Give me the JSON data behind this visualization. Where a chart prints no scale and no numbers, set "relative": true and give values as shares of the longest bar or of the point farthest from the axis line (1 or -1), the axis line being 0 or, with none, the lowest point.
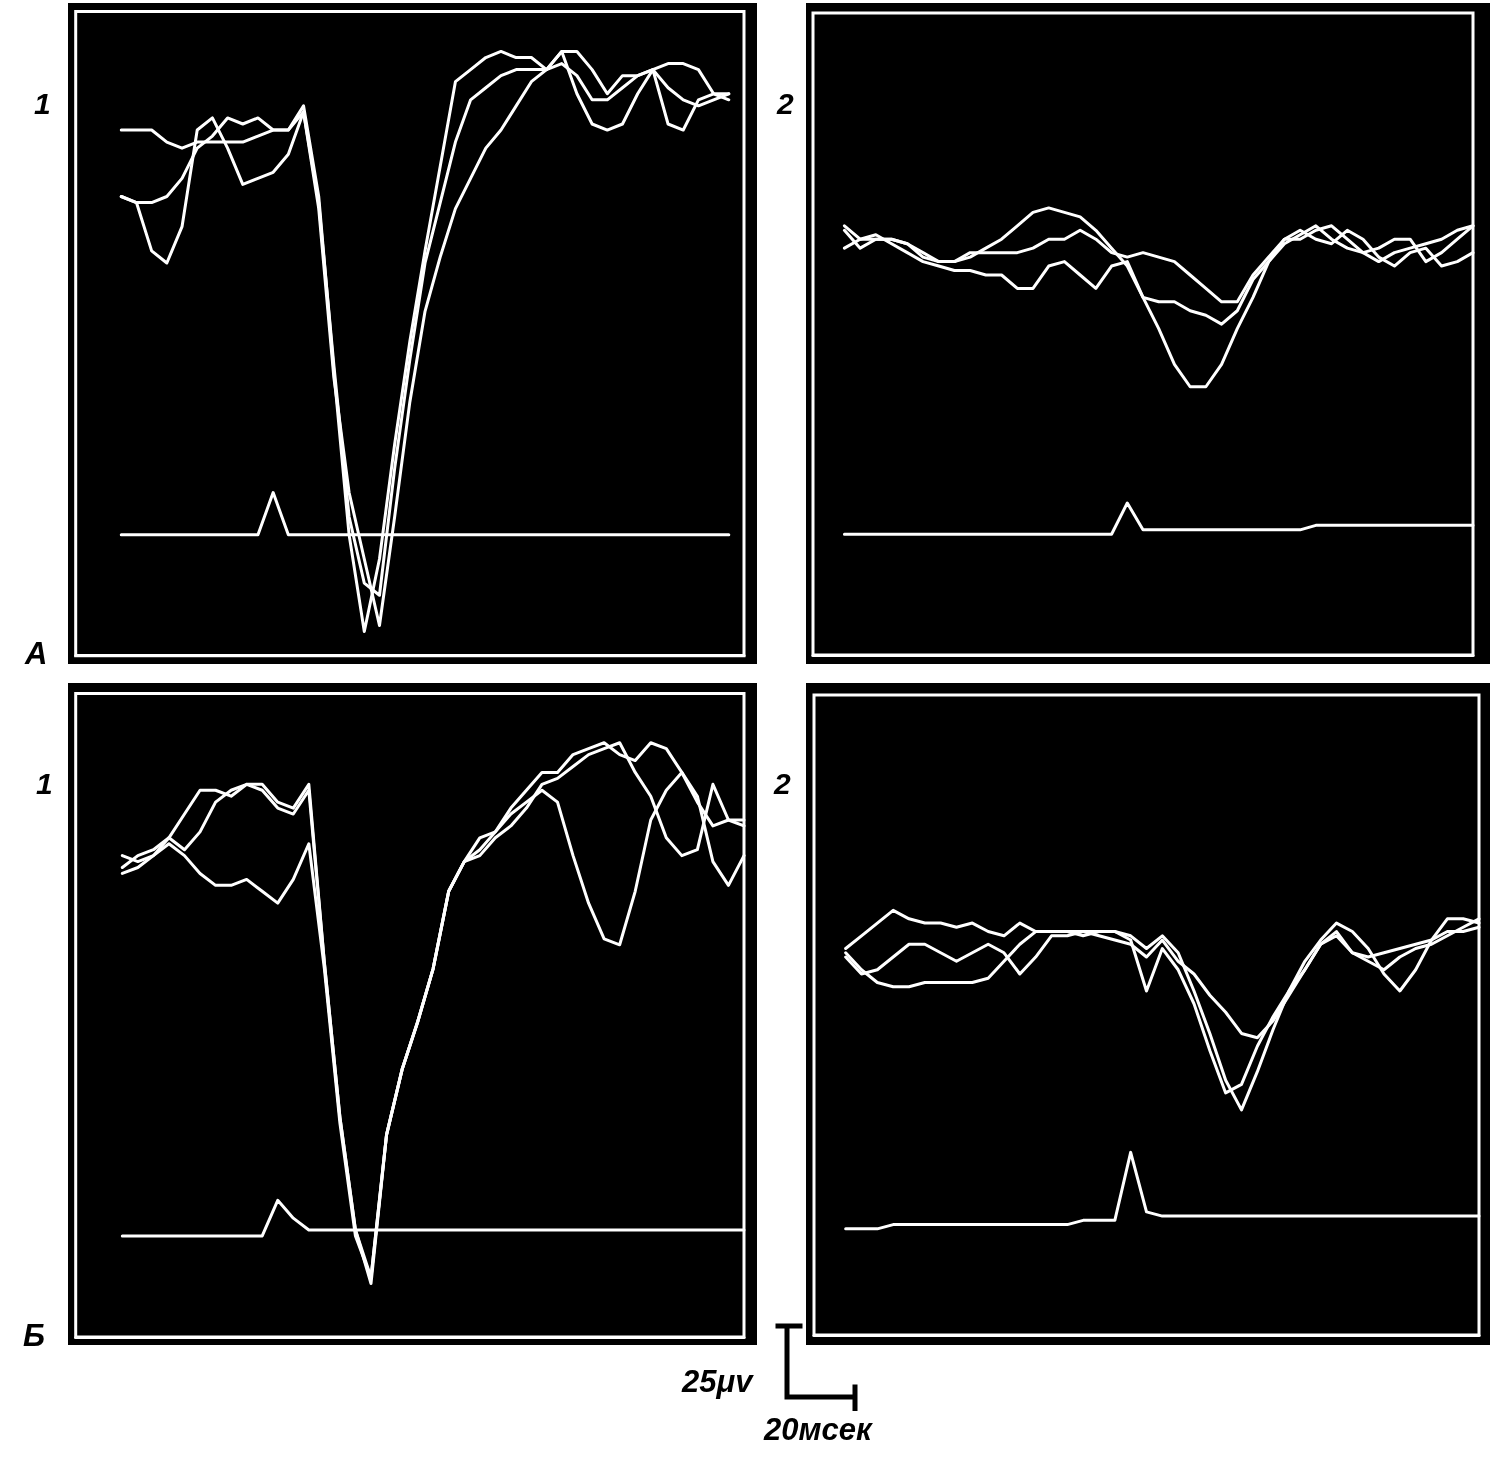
{
  "chart_data": [
    {
      "type": "line",
      "title": "1",
      "annotations": [
        "A"
      ],
      "relative": true,
      "categories": [
        null,
        null,
        null,
        null,
        null,
        null,
        null,
        null,
        null,
        null,
        null,
        null,
        null,
        null,
        null,
        null,
        null,
        null,
        null,
        null,
        null,
        null,
        null,
        null,
        null,
        null,
        null,
        null,
        null,
        null,
        null,
        null,
        null,
        null,
        null,
        null,
        null,
        null,
        null,
        null,
        null,
        null,
        null,
        null,
        null
      ],
      "series": [
        {
          "color": "#ffffff",
          "values": [
            null,
            null,
            null,
            0.87,
            0.87,
            0.87,
            0.85,
            0.84,
            0.85,
            0.85,
            0.85,
            0.85,
            0.86,
            0.87,
            0.87,
            0.91,
            0.76,
            0.47,
            0.2,
            0.04,
            0.16,
            0.35,
            0.52,
            0.67,
            0.81,
            0.95,
            0.97,
            0.99,
            1.0,
            0.99,
            0.99,
            0.97,
            1.0,
            0.93,
            0.88,
            0.87,
            0.88,
            0.93,
            0.97,
            0.88,
            0.87,
            0.92,
            0.93,
            0.92,
            null
          ]
        },
        {
          "color": "#ffffff",
          "values": [
            null,
            null,
            null,
            0.76,
            0.75,
            0.67,
            0.65,
            0.71,
            0.87,
            0.89,
            0.84,
            0.78,
            0.79,
            0.8,
            0.83,
            0.9,
            0.75,
            0.48,
            0.23,
            0.12,
            0.1,
            0.31,
            0.49,
            0.65,
            0.75,
            0.85,
            0.92,
            0.94,
            0.96,
            0.97,
            0.97,
            0.97,
            1.0,
            1.0,
            0.97,
            0.93,
            0.96,
            0.96,
            0.97,
            0.98,
            0.98,
            0.97,
            0.93,
            0.93,
            null
          ]
        },
        {
          "color": "#ffffff",
          "values": [
            null,
            null,
            null,
            0.76,
            0.75,
            0.75,
            0.76,
            0.79,
            0.84,
            0.86,
            0.89,
            0.88,
            0.89,
            0.87,
            0.87,
            0.9,
            0.74,
            0.46,
            0.27,
            0.16,
            0.05,
            0.23,
            0.42,
            0.57,
            0.66,
            0.74,
            0.79,
            0.84,
            0.87,
            0.91,
            0.95,
            0.97,
            0.98,
            0.96,
            0.92,
            0.92,
            0.94,
            0.96,
            0.97,
            0.94,
            0.92,
            0.91,
            0.92,
            0.93,
            null
          ]
        },
        {
          "color": "#ffffff",
          "values": [
            null,
            null,
            null,
            0.2,
            0.2,
            0.2,
            0.2,
            0.2,
            0.2,
            0.2,
            0.2,
            0.2,
            0.2,
            0.27,
            0.2,
            0.2,
            0.2,
            0.2,
            0.2,
            0.2,
            0.2,
            0.2,
            0.2,
            0.2,
            0.2,
            0.2,
            0.2,
            0.2,
            0.2,
            0.2,
            0.2,
            0.2,
            0.2,
            0.2,
            0.2,
            0.2,
            0.2,
            0.2,
            0.2,
            0.2,
            0.2,
            0.2,
            0.2,
            0.2,
            null
          ]
        }
      ]
    },
    {
      "type": "line",
      "title": "2",
      "relative": true,
      "categories": [
        null,
        null,
        null,
        null,
        null,
        null,
        null,
        null,
        null,
        null,
        null,
        null,
        null,
        null,
        null,
        null,
        null,
        null,
        null,
        null,
        null,
        null,
        null,
        null,
        null,
        null,
        null,
        null,
        null,
        null,
        null,
        null,
        null,
        null,
        null,
        null,
        null,
        null,
        null,
        null,
        null,
        null,
        null
      ],
      "series": [
        {
          "color": "#ffffff",
          "values": [
            null,
            null,
            0.96,
            0.93,
            0.93,
            0.93,
            0.92,
            0.9,
            0.88,
            0.88,
            0.89,
            0.91,
            0.93,
            0.96,
            0.99,
            1.0,
            0.99,
            0.98,
            0.95,
            0.91,
            0.87,
            0.8,
            0.73,
            0.65,
            0.6,
            0.6,
            0.65,
            0.73,
            0.8,
            0.88,
            0.92,
            0.94,
            0.96,
            0.93,
            0.91,
            0.9,
            0.88,
            0.9,
            0.91,
            0.92,
            0.93,
            0.95,
            0.96
          ]
        },
        {
          "color": "#ffffff",
          "values": [
            null,
            null,
            0.91,
            0.93,
            0.94,
            0.92,
            0.9,
            0.88,
            0.87,
            0.86,
            0.86,
            0.85,
            0.85,
            0.82,
            0.82,
            0.87,
            0.88,
            0.85,
            0.82,
            0.87,
            0.88,
            0.8,
            0.79,
            0.79,
            0.77,
            0.76,
            0.74,
            0.77,
            0.84,
            0.88,
            0.93,
            0.95,
            0.93,
            0.92,
            0.95,
            0.93,
            0.89,
            0.87,
            0.9,
            0.91,
            0.87,
            0.88,
            0.9
          ]
        },
        {
          "color": "#ffffff",
          "values": [
            null,
            null,
            0.95,
            0.91,
            0.93,
            0.93,
            0.92,
            0.89,
            0.88,
            0.88,
            0.9,
            0.9,
            0.9,
            0.9,
            0.91,
            0.93,
            0.93,
            0.95,
            0.93,
            0.9,
            0.89,
            0.9,
            0.89,
            0.88,
            0.85,
            0.82,
            0.79,
            0.79,
            0.85,
            0.89,
            0.93,
            0.93,
            0.95,
            0.96,
            0.93,
            0.9,
            0.91,
            0.93,
            0.93,
            0.88,
            0.9,
            0.93,
            0.96
          ]
        },
        {
          "color": "#ffffff",
          "values": [
            null,
            null,
            0.27,
            0.27,
            0.27,
            0.27,
            0.27,
            0.27,
            0.27,
            0.27,
            0.27,
            0.27,
            0.27,
            0.27,
            0.27,
            0.27,
            0.27,
            0.27,
            0.27,
            0.27,
            0.34,
            0.28,
            0.28,
            0.28,
            0.28,
            0.28,
            0.28,
            0.28,
            0.28,
            0.28,
            0.28,
            0.28,
            0.29,
            0.29,
            0.29,
            0.29,
            0.29,
            0.29,
            0.29,
            0.29,
            0.29,
            0.29,
            0.29
          ]
        }
      ]
    },
    {
      "type": "line",
      "title": "1",
      "annotations": [
        "Б"
      ],
      "relative": true,
      "categories": [
        null,
        null,
        null,
        null,
        null,
        null,
        null,
        null,
        null,
        null,
        null,
        null,
        null,
        null,
        null,
        null,
        null,
        null,
        null,
        null,
        null,
        null,
        null,
        null,
        null,
        null,
        null,
        null,
        null,
        null,
        null,
        null,
        null,
        null,
        null,
        null,
        null,
        null,
        null,
        null,
        null,
        null,
        null,
        null
      ],
      "series": [
        {
          "color": "#ffffff",
          "values": [
            null,
            null,
            null,
            0.81,
            0.8,
            0.81,
            0.84,
            0.88,
            0.92,
            0.92,
            0.91,
            0.93,
            0.93,
            0.9,
            0.89,
            0.93,
            0.63,
            0.37,
            0.18,
            0.09,
            0.34,
            0.45,
            0.53,
            0.62,
            0.75,
            0.8,
            0.82,
            0.85,
            0.89,
            0.92,
            0.95,
            0.95,
            0.98,
            0.99,
            1.0,
            0.98,
            0.97,
            1.0,
            0.99,
            0.95,
            0.91,
            0.8,
            0.76,
            0.81
          ]
        },
        {
          "color": "#ffffff",
          "values": [
            null,
            null,
            null,
            0.79,
            0.81,
            0.82,
            0.84,
            0.82,
            0.85,
            0.9,
            0.92,
            0.93,
            0.92,
            0.89,
            0.88,
            0.92,
            0.63,
            0.37,
            0.18,
            0.1,
            0.34,
            0.45,
            0.53,
            0.62,
            0.75,
            0.8,
            0.84,
            0.85,
            0.88,
            0.9,
            0.92,
            0.9,
            0.81,
            0.73,
            0.67,
            0.66,
            0.75,
            0.87,
            0.92,
            0.95,
            0.9,
            0.86,
            0.87,
            0.87
          ]
        },
        {
          "color": "#ffffff",
          "values": [
            null,
            null,
            null,
            0.78,
            0.79,
            0.81,
            0.83,
            0.81,
            0.78,
            0.76,
            0.76,
            0.77,
            0.75,
            0.73,
            0.77,
            0.83,
            0.62,
            0.36,
            0.17,
            0.1,
            0.34,
            0.45,
            0.53,
            0.62,
            0.75,
            0.8,
            0.81,
            0.84,
            0.86,
            0.89,
            0.93,
            0.94,
            0.96,
            0.98,
            0.99,
            1.0,
            0.95,
            0.91,
            0.84,
            0.81,
            0.82,
            0.93,
            0.87,
            0.86
          ]
        },
        {
          "color": "#ffffff",
          "values": [
            null,
            null,
            null,
            0.17,
            0.17,
            0.17,
            0.17,
            0.17,
            0.17,
            0.17,
            0.17,
            0.17,
            0.17,
            0.23,
            0.2,
            0.18,
            0.18,
            0.18,
            0.18,
            0.18,
            0.18,
            0.18,
            0.18,
            0.18,
            0.18,
            0.18,
            0.18,
            0.18,
            0.18,
            0.18,
            0.18,
            0.18,
            0.18,
            0.18,
            0.18,
            0.18,
            0.18,
            0.18,
            0.18,
            0.18,
            0.18,
            0.18,
            0.18,
            0.18
          ]
        }
      ]
    },
    {
      "type": "line",
      "title": "2",
      "annotations": [
        "25μv",
        "20мсек"
      ],
      "relative": true,
      "categories": [
        null,
        null,
        null,
        null,
        null,
        null,
        null,
        null,
        null,
        null,
        null,
        null,
        null,
        null,
        null,
        null,
        null,
        null,
        null,
        null,
        null,
        null,
        null,
        null,
        null,
        null,
        null,
        null,
        null,
        null,
        null,
        null,
        null,
        null,
        null,
        null,
        null,
        null,
        null,
        null,
        null,
        null,
        null
      ],
      "series": [
        {
          "color": "#ffffff",
          "values": [
            null,
            null,
            0.91,
            0.94,
            0.97,
            1.0,
            0.98,
            0.97,
            0.97,
            0.96,
            0.97,
            0.95,
            0.94,
            0.97,
            0.95,
            0.95,
            0.95,
            0.95,
            0.95,
            0.95,
            0.94,
            0.91,
            0.94,
            0.9,
            0.81,
            0.71,
            0.6,
            0.53,
            0.62,
            0.72,
            0.81,
            0.88,
            0.93,
            0.97,
            0.95,
            0.91,
            0.85,
            0.81,
            0.86,
            0.93,
            0.98,
            0.98,
            0.97
          ]
        },
        {
          "color": "#ffffff",
          "values": [
            null,
            null,
            0.9,
            0.86,
            0.83,
            0.82,
            0.82,
            0.83,
            0.83,
            0.83,
            0.83,
            0.84,
            0.88,
            0.92,
            0.95,
            0.95,
            0.95,
            0.94,
            0.95,
            0.95,
            0.93,
            0.81,
            0.91,
            0.86,
            0.78,
            0.67,
            0.57,
            0.59,
            0.68,
            0.75,
            0.81,
            0.86,
            0.92,
            0.95,
            0.9,
            0.89,
            0.9,
            0.91,
            0.92,
            0.93,
            0.95,
            0.95,
            0.96
          ]
        },
        {
          "color": "#ffffff",
          "values": [
            null,
            null,
            0.89,
            0.85,
            0.86,
            0.89,
            0.92,
            0.92,
            0.9,
            0.88,
            0.9,
            0.92,
            0.9,
            0.85,
            0.89,
            0.94,
            0.94,
            0.95,
            0.94,
            0.93,
            0.92,
            0.89,
            0.93,
            0.88,
            0.85,
            0.8,
            0.76,
            0.71,
            0.7,
            0.74,
            0.8,
            0.86,
            0.92,
            0.94,
            0.9,
            0.88,
            0.86,
            0.89,
            0.91,
            0.92,
            0.94,
            0.96,
            0.98
          ]
        },
        {
          "color": "#ffffff",
          "values": [
            null,
            null,
            0.25,
            0.25,
            0.25,
            0.26,
            0.26,
            0.26,
            0.26,
            0.26,
            0.26,
            0.26,
            0.26,
            0.26,
            0.26,
            0.26,
            0.26,
            0.27,
            0.27,
            0.27,
            0.43,
            0.29,
            0.28,
            0.28,
            0.28,
            0.28,
            0.28,
            0.28,
            0.28,
            0.28,
            0.28,
            0.28,
            0.28,
            0.28,
            0.28,
            0.28,
            0.28,
            0.28,
            0.28,
            0.28,
            0.28,
            0.28,
            0.28
          ]
        }
      ]
    }
  ]
}
